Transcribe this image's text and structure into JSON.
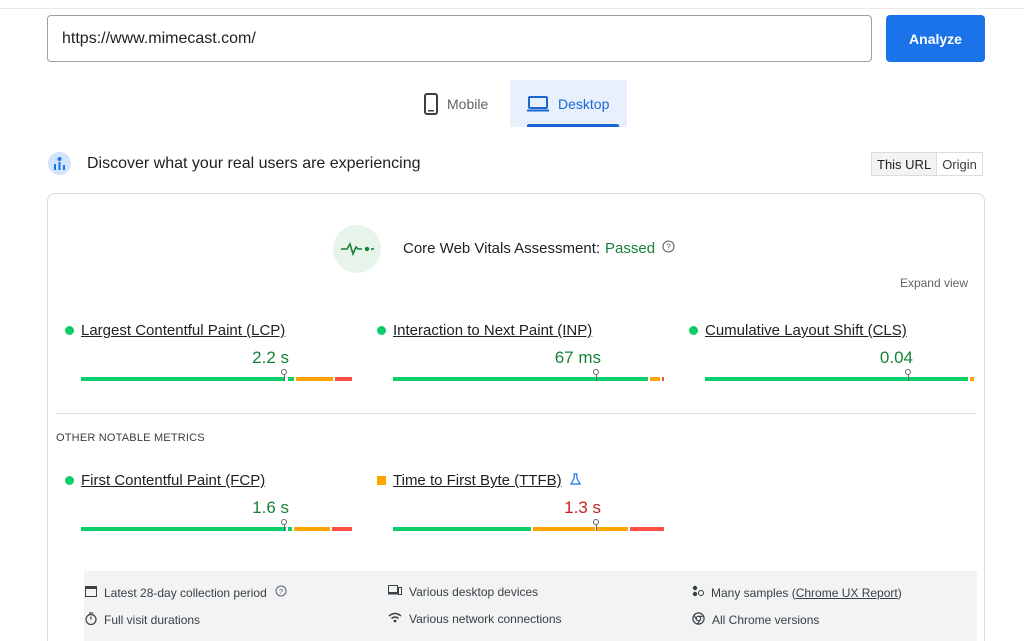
{
  "url_bar": {
    "value": "https://www.mimecast.com/",
    "analyze_label": "Analyze"
  },
  "tabs": [
    {
      "label": "Mobile"
    },
    {
      "label": "Desktop"
    }
  ],
  "discover": {
    "title": "Discover what your real users are experiencing",
    "this_url": "This URL",
    "origin": "Origin"
  },
  "assessment": {
    "label": "Core Web Vitals Assessment:",
    "status": "Passed",
    "expand": "Expand view"
  },
  "metrics": [
    {
      "name": "Largest Contentful Paint (LCP)",
      "value": "2.2 s",
      "status_color": "#0cce6b",
      "value_color": "#188038",
      "marker": 0.75
    },
    {
      "name": "Interaction to Next Paint (INP)",
      "value": "67 ms",
      "status_color": "#0cce6b",
      "value_color": "#188038",
      "marker": 0.75
    },
    {
      "name": "Cumulative Layout Shift (CLS)",
      "value": "0.04",
      "status_color": "#0cce6b",
      "value_color": "#188038",
      "marker": 0.75
    }
  ],
  "other_label": "OTHER NOTABLE METRICS",
  "other_metrics": [
    {
      "name": "First Contentful Paint (FCP)",
      "value": "1.6 s",
      "status_color": "#0cce6b",
      "value_color": "#188038",
      "marker": 0.75
    },
    {
      "name": "Time to First Byte (TTFB)",
      "value": "1.3 s",
      "status_color": "#ffa400",
      "value_color": "#c5221f",
      "marker": 0.75
    }
  ],
  "info": {
    "period": "Latest 28-day collection period",
    "devices": "Various desktop devices",
    "samples_prefix": "Many samples (",
    "samples_link": "Chrome UX Report",
    "samples_suffix": ")",
    "durations": "Full visit durations",
    "network": "Various network connections",
    "versions": "All Chrome versions"
  },
  "colors": {
    "good": "#0cce6b",
    "needs_improvement": "#ffa400",
    "poor": "#ff4e42",
    "accent": "#1a73e8"
  }
}
